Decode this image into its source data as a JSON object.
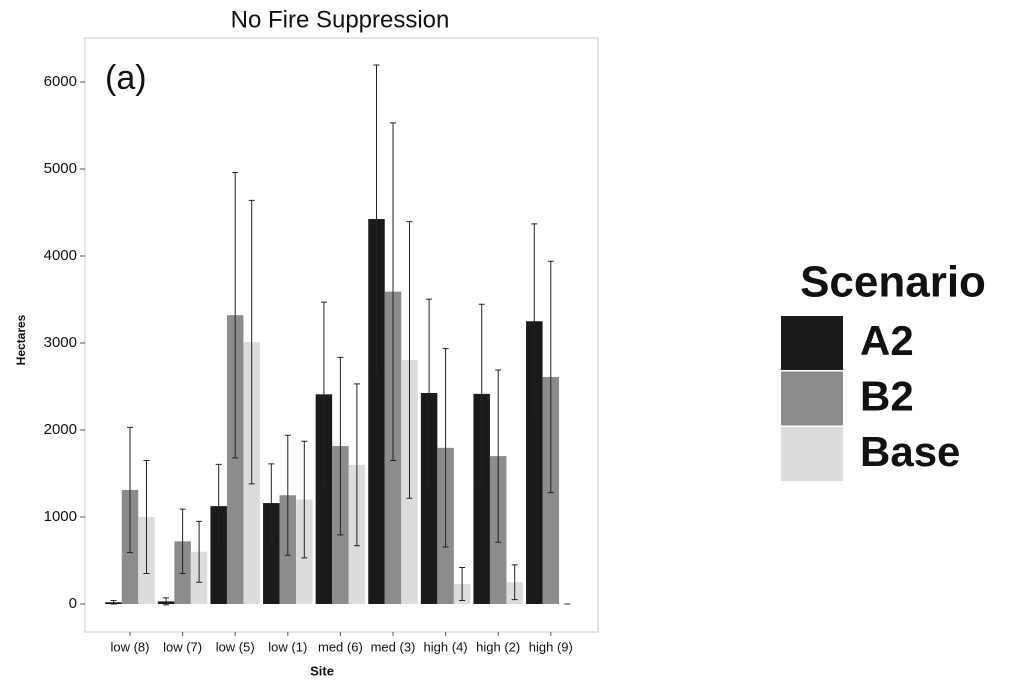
{
  "chart_data": {
    "type": "bar",
    "title": "No Fire Suppression",
    "annotation": "(a)",
    "y_label": "Hectares",
    "x_label": "Site",
    "legend_title": "Scenario",
    "categories": [
      "low (8)",
      "low (7)",
      "low (5)",
      "low (1)",
      "med (6)",
      "med (3)",
      "high (4)",
      "high (2)",
      "high (9)"
    ],
    "series": [
      {
        "name": "A2",
        "color": "#1a1a1a",
        "values": [
          20,
          30,
          1125,
          1160,
          2410,
          4425,
          2425,
          2415,
          3250
        ],
        "errors": [
          20,
          40,
          480,
          450,
          1060,
          1770,
          1080,
          1030,
          1120
        ]
      },
      {
        "name": "B2",
        "color": "#8c8c8c",
        "values": [
          1310,
          720,
          3320,
          1250,
          1815,
          3590,
          1795,
          1700,
          2610
        ],
        "errors": [
          720,
          370,
          1640,
          690,
          1020,
          1940,
          1140,
          990,
          1330
        ]
      },
      {
        "name": "Base",
        "color": "#dcdcdc",
        "values": [
          1000,
          600,
          3010,
          1200,
          1600,
          2805,
          230,
          250,
          0
        ],
        "errors": [
          650,
          350,
          1630,
          670,
          930,
          1590,
          190,
          200,
          0
        ]
      }
    ],
    "ylim": [
      -322,
      6506
    ],
    "yticks": [
      0,
      1000,
      2000,
      3000,
      4000,
      5000,
      6000
    ]
  }
}
